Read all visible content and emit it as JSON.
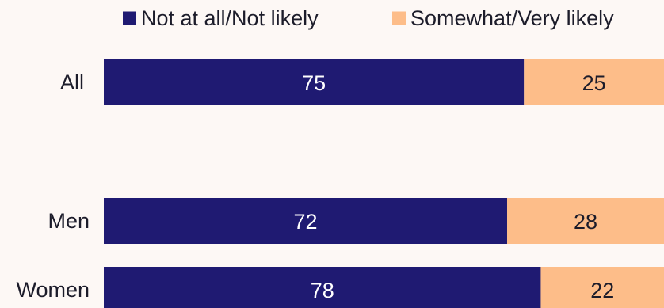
{
  "chart_data": {
    "type": "bar",
    "orientation": "horizontal",
    "stacked": true,
    "categories": [
      "All",
      "Men",
      "Women"
    ],
    "series": [
      {
        "name": "Not at all/Not likely",
        "values": [
          75,
          72,
          78
        ],
        "color": "#1f1a72",
        "label_color": "#ffffff"
      },
      {
        "name": "Somewhat/Very likely",
        "values": [
          25,
          28,
          22
        ],
        "color": "#fdbd89",
        "label_color": "#1c1c2a"
      }
    ],
    "xlim": [
      0,
      100
    ],
    "grid": false,
    "legend_position": "top"
  }
}
